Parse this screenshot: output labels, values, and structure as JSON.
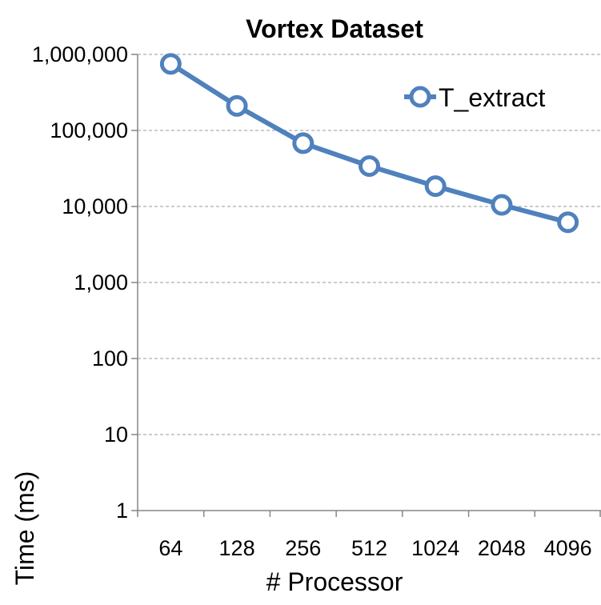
{
  "chart_data": {
    "type": "line",
    "title": "Vortex Dataset",
    "xlabel": "# Processor",
    "ylabel": "Time (ms)",
    "x_scale": "categorical",
    "y_scale": "log",
    "ylim": [
      1,
      1000000
    ],
    "categories": [
      "64",
      "128",
      "256",
      "512",
      "1024",
      "2048",
      "4096"
    ],
    "y_ticks": [
      1,
      10,
      100,
      1000,
      10000,
      100000,
      1000000
    ],
    "y_tick_labels": [
      "1",
      "10",
      "100",
      "1,000",
      "10,000",
      "100,000",
      "1,000,000"
    ],
    "grid": "horizontal-dashed",
    "legend_position": "top-right",
    "series": [
      {
        "name": "T_extract",
        "color": "#4f81bd",
        "marker": "open-circle",
        "values": [
          750000,
          210000,
          68000,
          34000,
          18500,
          10500,
          6200
        ]
      }
    ]
  }
}
